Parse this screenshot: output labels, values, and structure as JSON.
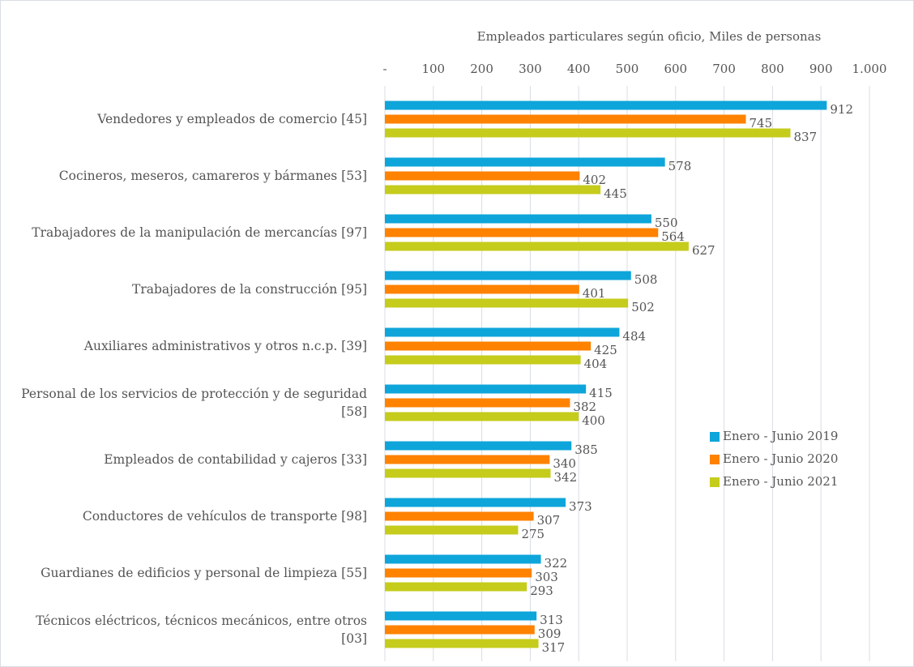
{
  "chart_data": {
    "type": "bar",
    "orientation": "horizontal",
    "title": "Empleados particulares según oficio, Miles de personas",
    "categories": [
      "Vendedores y empleados de comercio [45]",
      "Cocineros, meseros, camareros y bármanes [53]",
      "Trabajadores de la manipulación de mercancías [97]",
      "Trabajadores de la construcción [95]",
      "Auxiliares administrativos y otros n.c.p. [39]",
      "Personal de los servicios de protección y de seguridad [58]",
      "Empleados de contabilidad y cajeros [33]",
      "Conductores de vehículos de transporte [98]",
      "Guardianes de edificios y personal de limpieza [55]",
      "Técnicos eléctricos, técnicos mecánicos, entre otros [03]"
    ],
    "series": [
      {
        "name": "Enero - Junio 2019",
        "color": "#0ea5da",
        "values": [
          912,
          578,
          550,
          508,
          484,
          415,
          385,
          373,
          322,
          313
        ]
      },
      {
        "name": "Enero - Junio 2020",
        "color": "#ff8200",
        "values": [
          745,
          402,
          564,
          401,
          425,
          382,
          340,
          307,
          303,
          309
        ]
      },
      {
        "name": "Enero - Junio 2021",
        "color": "#c5cc1c",
        "values": [
          837,
          445,
          627,
          502,
          404,
          400,
          342,
          275,
          293,
          317
        ]
      }
    ],
    "xlim": [
      0,
      1000
    ],
    "xticks": [
      {
        "value": 0,
        "label": "-"
      },
      100,
      200,
      300,
      400,
      500,
      600,
      700,
      800,
      900,
      {
        "value": 1000,
        "label": "1.000"
      }
    ],
    "grid": true,
    "legend": "right"
  }
}
